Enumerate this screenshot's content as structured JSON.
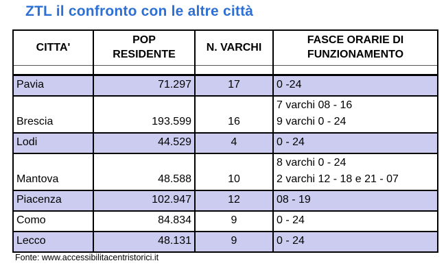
{
  "title": "ZTL il confronto con le altre città",
  "colors": {
    "title_blue": "#2E6FD2",
    "row_highlight": "#CCCCF0",
    "border": "#000000"
  },
  "table": {
    "headers": {
      "city": "CITTA'",
      "pop": [
        "POP",
        "RESIDENTE"
      ],
      "varchi": "N. VARCHI",
      "fasce": [
        "FASCE ORARIE DI",
        "FUNZIONAMENTO"
      ]
    },
    "rows": [
      {
        "city": "Pavia",
        "pop": "71.297",
        "varchi": "17",
        "fasce": [
          "0 -24"
        ],
        "highlight": true
      },
      {
        "city": "Brescia",
        "pop": "193.599",
        "varchi": "16",
        "fasce": [
          "7 varchi 08 - 16",
          "9 varchi 0 - 24"
        ],
        "highlight": false
      },
      {
        "city": "Lodi",
        "pop": "44.529",
        "varchi": "4",
        "fasce": [
          "0 - 24"
        ],
        "highlight": true
      },
      {
        "city": "Mantova",
        "pop": "48.588",
        "varchi": "10",
        "fasce": [
          "8 varchi 0 - 24",
          "2 varchi 12 - 18 e 21 - 07"
        ],
        "highlight": false
      },
      {
        "city": "Piacenza",
        "pop": "102.947",
        "varchi": "12",
        "fasce": [
          "08 - 19"
        ],
        "highlight": true
      },
      {
        "city": "Como",
        "pop": "84.834",
        "varchi": "9",
        "fasce": [
          "0 - 24"
        ],
        "highlight": false
      },
      {
        "city": "Lecco",
        "pop": "48.131",
        "varchi": "9",
        "fasce": [
          "0 - 24"
        ],
        "highlight": true
      }
    ]
  },
  "source": "Fonte: www.accessibilitacentristorici.it"
}
